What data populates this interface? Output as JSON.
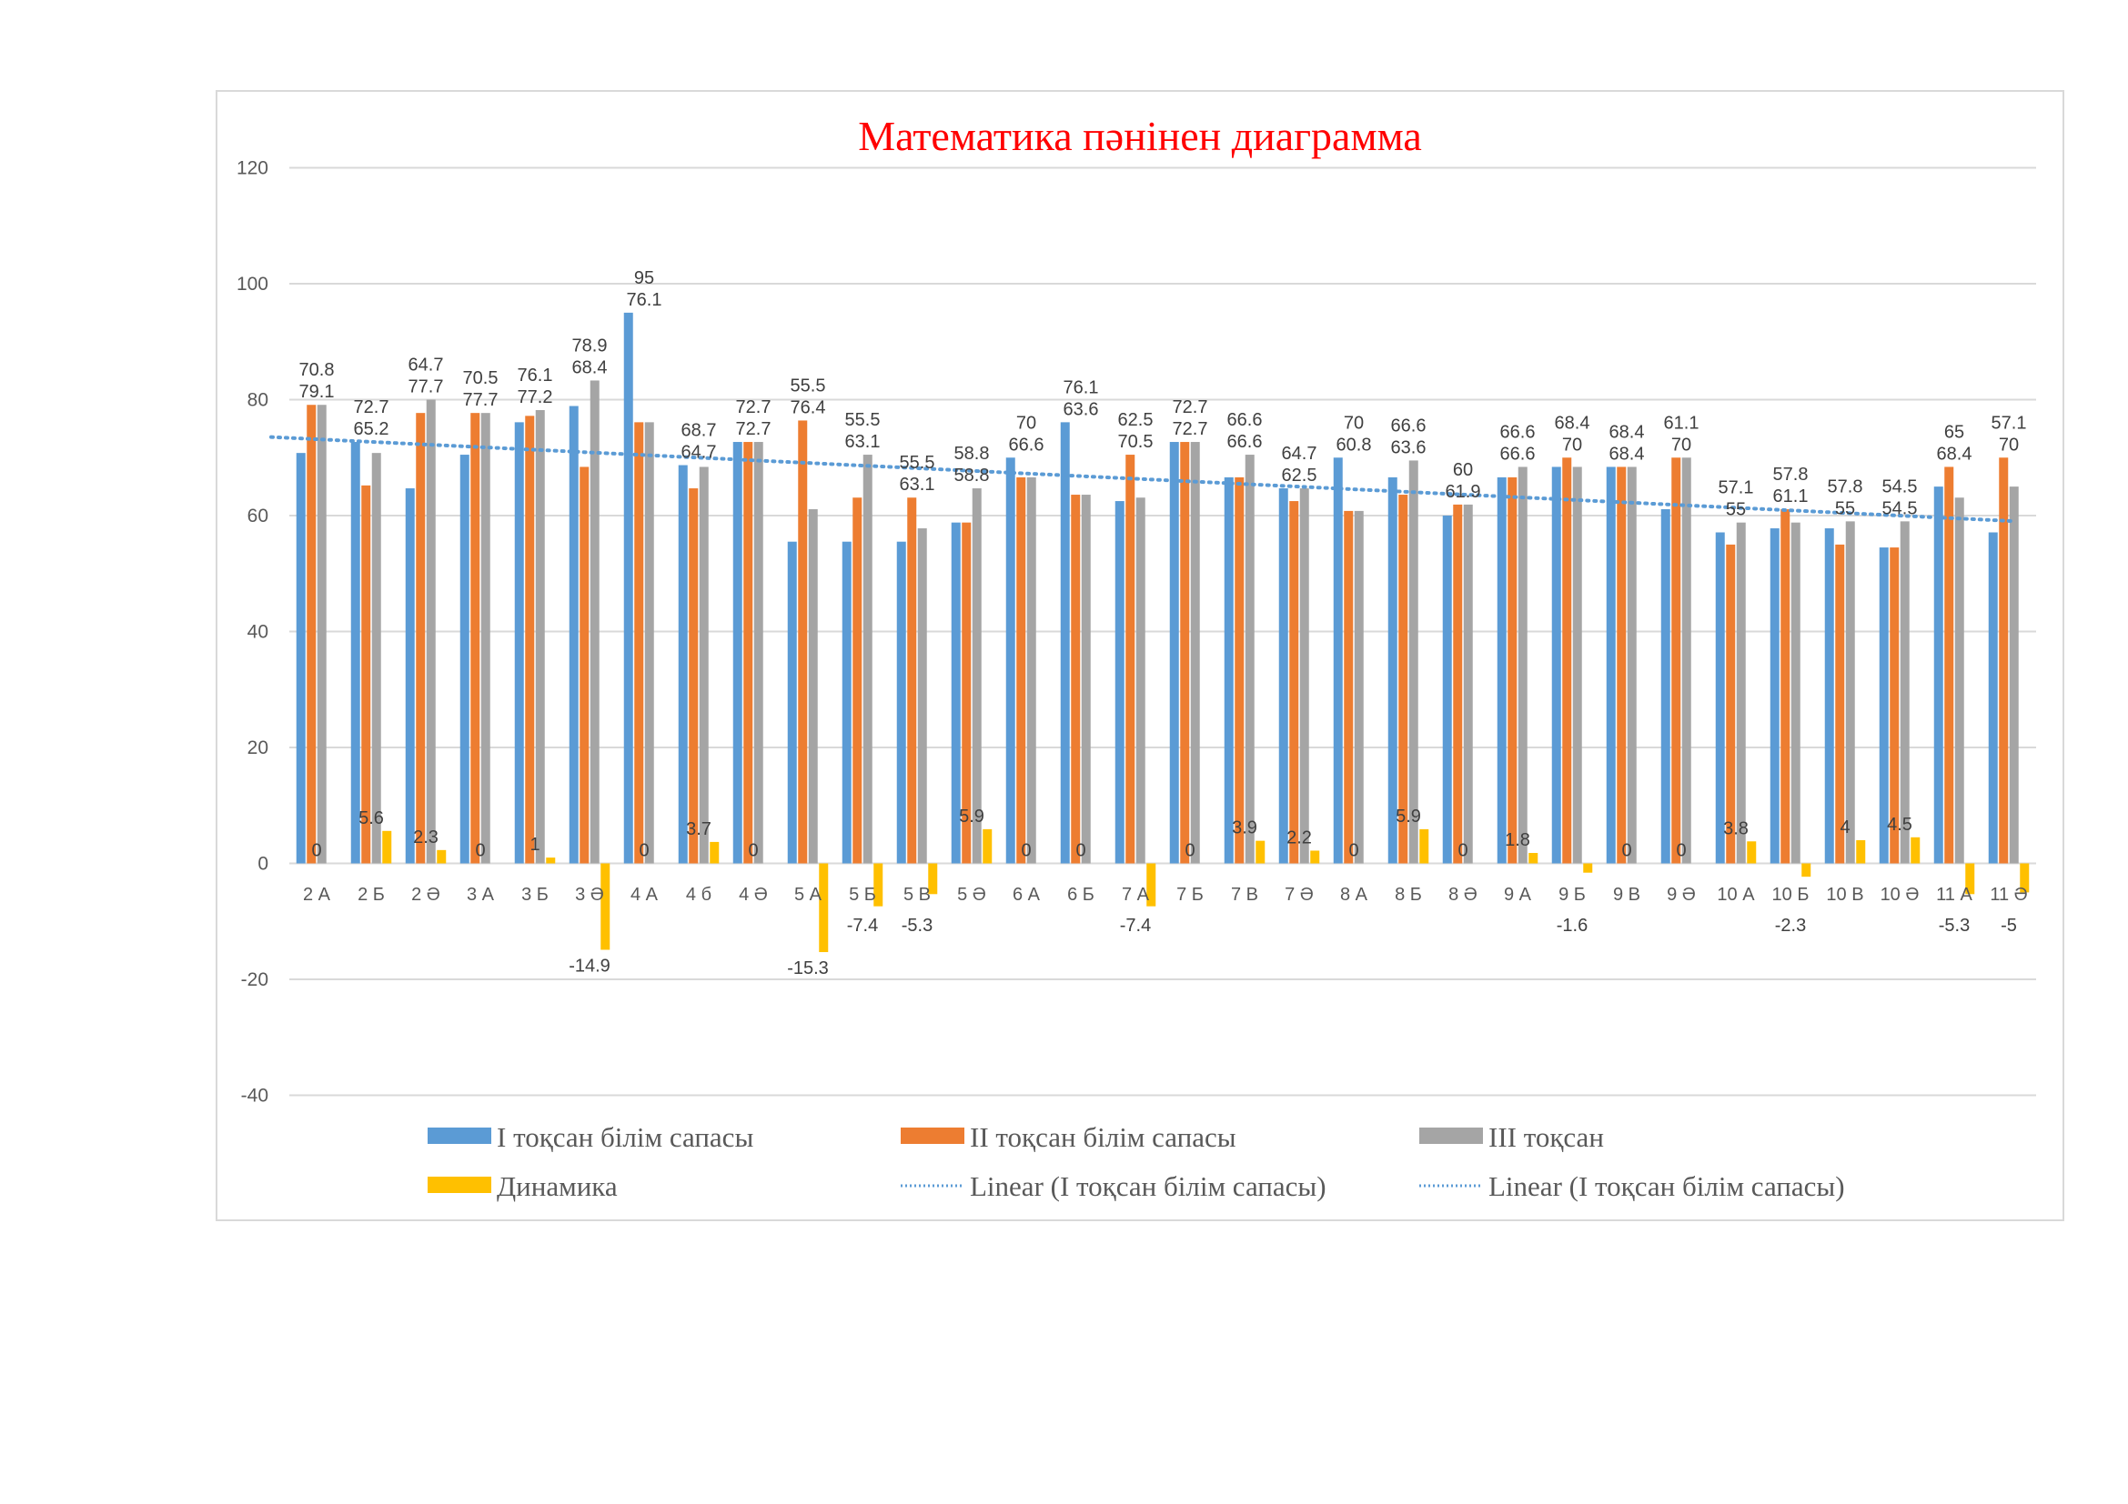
{
  "chart_data": {
    "type": "bar",
    "title": "Математика пәнінен диаграмма",
    "xlabel": "",
    "ylabel": "",
    "ylim": [
      -40,
      120
    ],
    "yticks": [
      -40,
      -20,
      0,
      20,
      40,
      60,
      80,
      100,
      120
    ],
    "grid": true,
    "legend_position": "bottom",
    "categories": [
      "2 А",
      "2 Б",
      "2 Ә",
      "3 А",
      "3 Б",
      "3 Ә",
      "4 А",
      "4 б",
      "4 Ә",
      "5 А",
      "5 Б",
      "5 В",
      "5 Ә",
      "6 А",
      "6 Б",
      "7 А",
      "7 Б",
      "7 В",
      "7 Ә",
      "8 А",
      "8 Б",
      "8 Ә",
      "9 А",
      "9 Б",
      "9 В",
      "9 Ә",
      "10 А",
      "10 Б",
      "10 В",
      "10 Ә",
      "11 А",
      "11 Ә"
    ],
    "series": [
      {
        "name": "І тоқсан білім сапасы",
        "color": "#5b9bd5",
        "labels": true,
        "values": [
          70.8,
          72.7,
          64.7,
          70.5,
          76.1,
          78.9,
          95,
          68.7,
          72.7,
          55.5,
          55.5,
          55.5,
          58.8,
          70,
          76.1,
          62.5,
          72.7,
          66.6,
          64.7,
          70,
          66.6,
          60,
          66.6,
          68.4,
          68.4,
          61.1,
          57.1,
          57.8,
          57.8,
          54.5,
          65,
          57.1
        ]
      },
      {
        "name": "ІІ тоқсан білім сапасы",
        "color": "#ed7d31",
        "labels": true,
        "values": [
          79.1,
          65.2,
          77.7,
          77.7,
          77.2,
          68.4,
          76.1,
          64.7,
          72.7,
          76.4,
          63.1,
          63.1,
          58.8,
          66.6,
          63.6,
          70.5,
          72.7,
          66.6,
          62.5,
          60.8,
          63.6,
          61.9,
          66.6,
          70,
          68.4,
          70,
          55,
          61.1,
          55,
          54.5,
          68.4,
          70
        ]
      },
      {
        "name": "ІІІ тоқсан",
        "color": "#a5a5a5",
        "labels": false,
        "values": [
          79.1,
          70.8,
          80,
          77.7,
          78.2,
          83.3,
          76.1,
          68.4,
          72.7,
          61.1,
          70.5,
          57.8,
          64.7,
          66.6,
          63.6,
          63.1,
          72.7,
          70.5,
          64.7,
          60.8,
          69.5,
          61.9,
          68.4,
          68.4,
          68.4,
          70,
          58.8,
          58.8,
          59,
          59,
          63.1,
          65
        ]
      },
      {
        "name": "Динамика",
        "color": "#ffc000",
        "labels": true,
        "values": [
          0,
          5.6,
          2.3,
          0,
          1,
          -14.9,
          0,
          3.7,
          0,
          -15.3,
          -7.4,
          -5.3,
          5.9,
          0,
          0,
          -7.4,
          0,
          3.9,
          2.2,
          0,
          5.9,
          0,
          1.8,
          -1.6,
          0,
          0,
          3.8,
          -2.3,
          4,
          4.5,
          -5.3,
          -5
        ]
      }
    ],
    "trendlines": [
      {
        "name": "Linear (І тоқсан білім сапасы)",
        "type": "linear",
        "of_series": "І тоқсан білім сапасы",
        "color": "#5b9bd5"
      },
      {
        "name": "Linear (І тоқсан білім сапасы)",
        "type": "linear",
        "of_series": "І тоқсан білім сапасы",
        "color": "#5b9bd5"
      }
    ]
  }
}
